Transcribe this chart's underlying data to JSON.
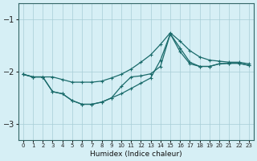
{
  "xlabel": "Humidex (Indice chaleur)",
  "bg_color": "#d6eff5",
  "grid_color": "#a8cdd6",
  "line_color": "#1a6b6b",
  "xlim": [
    -0.5,
    23.5
  ],
  "ylim": [
    -3.3,
    -0.7
  ],
  "yticks": [
    -3,
    -2,
    -1
  ],
  "xticks": [
    0,
    1,
    2,
    3,
    4,
    5,
    6,
    7,
    8,
    9,
    10,
    11,
    12,
    13,
    14,
    15,
    16,
    17,
    18,
    19,
    20,
    21,
    22,
    23
  ],
  "line1_x": [
    0,
    1,
    2,
    3,
    4,
    5,
    6,
    7,
    8,
    9,
    10,
    11,
    12,
    13,
    14,
    15,
    16,
    17,
    18,
    19,
    20,
    21,
    22,
    23
  ],
  "line1_y": [
    -2.05,
    -2.1,
    -2.1,
    -2.1,
    -2.15,
    -2.2,
    -2.2,
    -2.2,
    -2.18,
    -2.12,
    -2.05,
    -1.95,
    -1.82,
    -1.68,
    -1.48,
    -1.26,
    -1.42,
    -1.6,
    -1.72,
    -1.78,
    -1.8,
    -1.82,
    -1.82,
    -1.85
  ],
  "line2_x": [
    0,
    1,
    2,
    3,
    4,
    5,
    6,
    7,
    8,
    9,
    10,
    11,
    12,
    13,
    14,
    15,
    16,
    17,
    18,
    19,
    20,
    21,
    22,
    23
  ],
  "line2_y": [
    -2.05,
    -2.1,
    -2.1,
    -2.38,
    -2.42,
    -2.55,
    -2.62,
    -2.62,
    -2.58,
    -2.5,
    -2.42,
    -2.32,
    -2.22,
    -2.12,
    -1.78,
    -1.28,
    -1.55,
    -1.82,
    -1.9,
    -1.9,
    -1.85,
    -1.84,
    -1.84,
    -1.88
  ],
  "line3_x": [
    0,
    1,
    2,
    3,
    4,
    5,
    6,
    7,
    8,
    9,
    10,
    11,
    12,
    13,
    14,
    15,
    16,
    17,
    18,
    19,
    20,
    21,
    22,
    23
  ],
  "line3_y": [
    -2.05,
    -2.1,
    -2.1,
    -2.38,
    -2.42,
    -2.55,
    -2.62,
    -2.62,
    -2.58,
    -2.5,
    -2.28,
    -2.1,
    -2.08,
    -2.04,
    -1.9,
    -1.28,
    -1.62,
    -1.85,
    -1.9,
    -1.9,
    -1.85,
    -1.84,
    -1.84,
    -1.88
  ]
}
